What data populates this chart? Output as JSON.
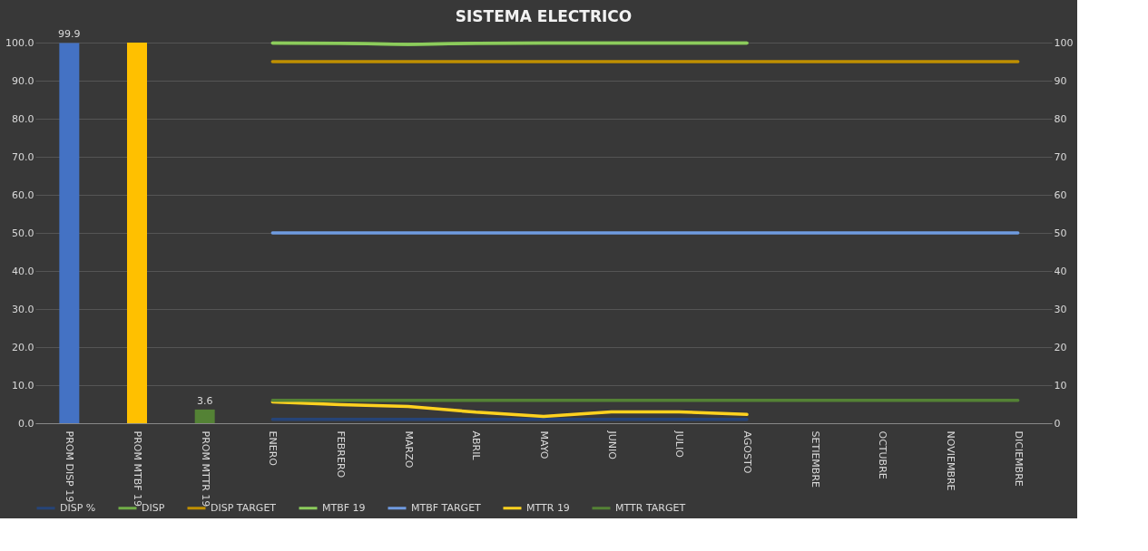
{
  "chart_data": {
    "type": "bar",
    "title": "SISTEMA ELECTRICO",
    "categories": [
      "PROM DISP 19",
      "PROM MTBF 19",
      "PROM MTTR 19",
      "ENERO",
      "FEBRERO",
      "MARZO",
      "ABRIL",
      "MAYO",
      "JUNIO",
      "JULIO",
      "AGOSTO",
      "SETIEMBRE",
      "OCTUBRE",
      "NOVIEMBRE",
      "DICIEMBRE"
    ],
    "values": [
      99.9,
      100,
      3.6,
      null,
      null,
      null,
      null,
      null,
      null,
      null,
      null,
      null,
      null,
      null,
      null
    ],
    "colors": [
      "#4472c4",
      "#ffc000",
      "#548235",
      "#4472c4",
      "#4472c4",
      "#4472c4",
      "#4472c4",
      "#4472c4",
      "#4472c4",
      "#4472c4",
      "#4472c4",
      "#4472c4",
      "#4472c4",
      "#4472c4",
      "#4472c4"
    ],
    "value_labels": [
      "99.9",
      null,
      "3.6",
      null,
      null,
      null,
      null,
      null,
      null,
      null,
      null,
      null,
      null,
      null,
      null
    ],
    "series": [
      {
        "name": "DISP %",
        "type": "line",
        "color": "#264478",
        "values": [
          null,
          null,
          null,
          1,
          1,
          1,
          1,
          1,
          1,
          1,
          1,
          null,
          null,
          null,
          null
        ]
      },
      {
        "name": "DISP",
        "type": "line",
        "color": "#70ad47",
        "values": [
          null,
          null,
          null,
          99.9,
          99.8,
          99.5,
          99.8,
          99.9,
          99.9,
          99.9,
          99.9,
          null,
          null,
          null,
          null
        ]
      },
      {
        "name": "DISP TARGET",
        "type": "line",
        "color": "#bf8f00",
        "values": [
          null,
          null,
          null,
          95,
          95,
          95,
          95,
          95,
          95,
          95,
          95,
          95,
          95,
          95,
          95
        ]
      },
      {
        "name": "MTBF 19",
        "type": "line",
        "axis": "y2",
        "color": "#8ccc5c",
        "values": [
          null,
          null,
          null,
          99.9,
          99.8,
          99.5,
          99.8,
          99.9,
          99.9,
          99.9,
          99.9,
          null,
          null,
          null,
          null
        ]
      },
      {
        "name": "MTBF TARGET",
        "type": "line",
        "axis": "y2",
        "color": "#6f9be0",
        "values": [
          null,
          null,
          null,
          50,
          50,
          50,
          50,
          50,
          50,
          50,
          50,
          50,
          50,
          50,
          50
        ]
      },
      {
        "name": "MTTR 19",
        "type": "line",
        "axis": "y2",
        "color": "#ffd21f",
        "values": [
          null,
          null,
          null,
          5.6,
          4.9,
          4.4,
          2.9,
          1.8,
          3.0,
          3.0,
          2.3,
          null,
          null,
          null,
          null
        ]
      },
      {
        "name": "MTTR TARGET",
        "type": "line",
        "axis": "y2",
        "color": "#548235",
        "values": [
          null,
          null,
          null,
          6,
          6,
          6,
          6,
          6,
          6,
          6,
          6,
          6,
          6,
          6,
          6
        ]
      }
    ],
    "ylim": [
      0,
      100
    ],
    "yticks": [
      {
        "value": 0,
        "label": "0.0"
      },
      {
        "value": 10,
        "label": "10.0"
      },
      {
        "value": 20,
        "label": "20.0"
      },
      {
        "value": 30,
        "label": "30.0"
      },
      {
        "value": 40,
        "label": "40.0"
      },
      {
        "value": 50,
        "label": "50.0"
      },
      {
        "value": 60,
        "label": "60.0"
      },
      {
        "value": 70,
        "label": "70.0"
      },
      {
        "value": 80,
        "label": "80.0"
      },
      {
        "value": 90,
        "label": "90.0"
      },
      {
        "value": 100,
        "label": "100.0"
      }
    ],
    "y2lim": [
      0,
      100
    ],
    "y2ticks": [
      0,
      10,
      20,
      30,
      40,
      50,
      60,
      70,
      80,
      90,
      100
    ],
    "grid": "y",
    "legend": "bottom",
    "line_style": "solid",
    "marker": "none"
  }
}
